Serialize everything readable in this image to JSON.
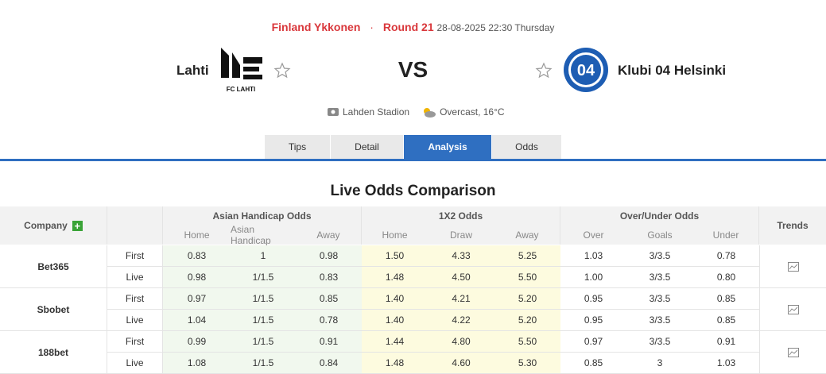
{
  "header": {
    "league": "Finland Ykkonen",
    "round": "Round 21",
    "datetime": "28-08-2025 22:30 Thursday",
    "home": "Lahti",
    "home_logo_text": "FC LAHTI",
    "vs": "VS",
    "away": "Klubi 04 Helsinki",
    "away_logo_text": "04",
    "venue": "Lahden Stadion",
    "weather": "Overcast, 16°C"
  },
  "tabs": [
    "Tips",
    "Detail",
    "Analysis",
    "Odds"
  ],
  "section_title": "Live Odds Comparison",
  "table": {
    "company": "Company",
    "groups": [
      "Asian Handicap Odds",
      "1X2 Odds",
      "Over/Under Odds"
    ],
    "trends": "Trends",
    "subheaders": [
      "Home",
      "Asian Handicap",
      "Away",
      "Home",
      "Draw",
      "Away",
      "Over",
      "Goals",
      "Under"
    ],
    "rows": [
      {
        "company": "Bet365",
        "lines": [
          {
            "type": "First",
            "values": [
              "0.83",
              "1",
              "0.98",
              "1.50",
              "4.33",
              "5.25",
              "1.03",
              "3/3.5",
              "0.78"
            ]
          },
          {
            "type": "Live",
            "values": [
              "0.98",
              "1/1.5",
              "0.83",
              "1.48",
              "4.50",
              "5.50",
              "1.00",
              "3/3.5",
              "0.80"
            ]
          }
        ]
      },
      {
        "company": "Sbobet",
        "lines": [
          {
            "type": "First",
            "values": [
              "0.97",
              "1/1.5",
              "0.85",
              "1.40",
              "4.21",
              "5.20",
              "0.95",
              "3/3.5",
              "0.85"
            ]
          },
          {
            "type": "Live",
            "values": [
              "1.04",
              "1/1.5",
              "0.78",
              "1.40",
              "4.22",
              "5.20",
              "0.95",
              "3/3.5",
              "0.85"
            ]
          }
        ]
      },
      {
        "company": "188bet",
        "lines": [
          {
            "type": "First",
            "values": [
              "0.99",
              "1/1.5",
              "0.91",
              "1.44",
              "4.80",
              "5.50",
              "0.97",
              "3/3.5",
              "0.91"
            ]
          },
          {
            "type": "Live",
            "values": [
              "1.08",
              "1/1.5",
              "0.84",
              "1.48",
              "4.60",
              "5.30",
              "0.85",
              "3",
              "1.03"
            ]
          }
        ]
      }
    ]
  }
}
